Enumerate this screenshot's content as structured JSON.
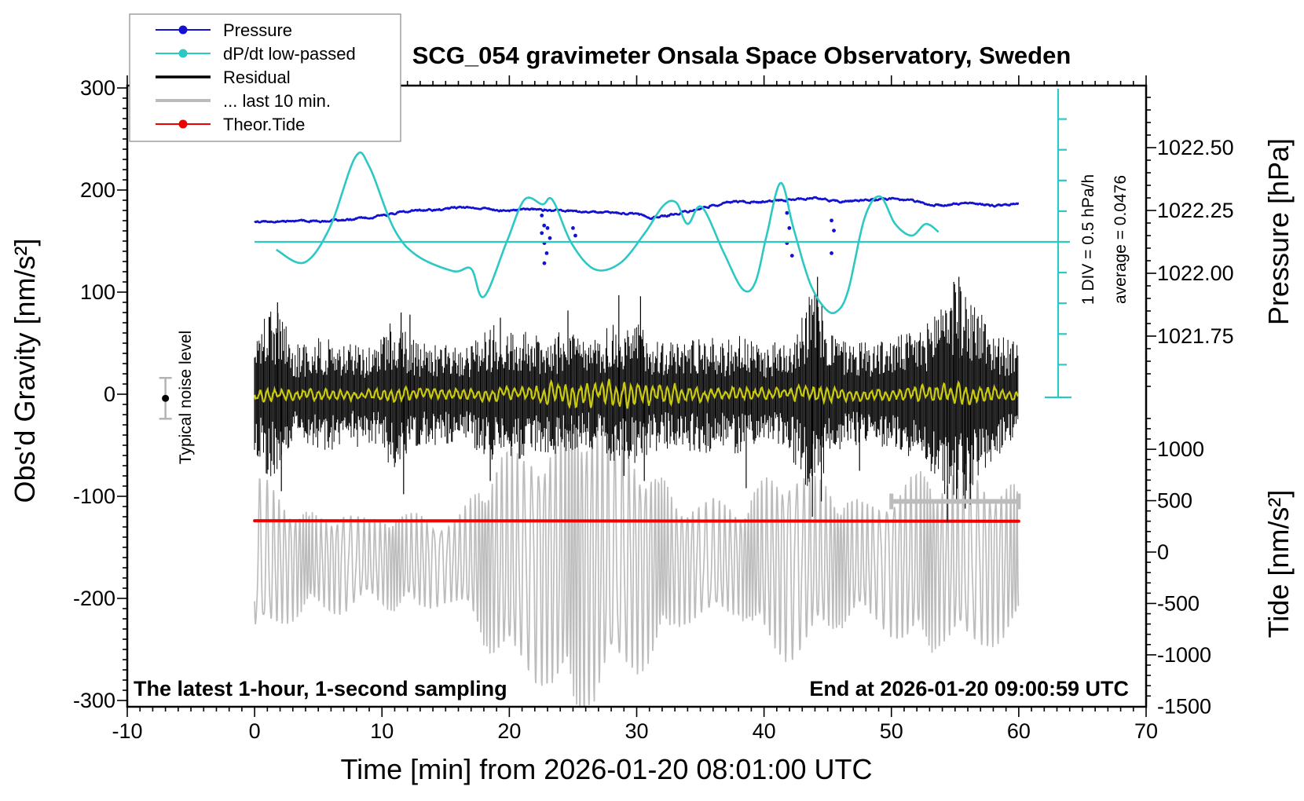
{
  "labels": {
    "title": "SCG_054 gravimeter Onsala Space Observatory, Sweden",
    "x_axis": "Time [min] from 2026-01-20 08:01:00 UTC",
    "y_left": "Obs'd Gravity [nm/s²]",
    "y_right_top": "Pressure [hPa]",
    "y_right_bottom": "Tide [nm/s²]",
    "note_left": "The latest 1-hour, 1-second sampling",
    "note_right": "End at 2026-01-20 09:00:59 UTC",
    "noise_marker": "Typical noise level",
    "div_annotation": "1 DIV = 0.5 hPa/h",
    "average_annotation": "average = 0.0476"
  },
  "colors": {
    "pressure": "#1212d0",
    "dpdt": "#2cc8c4",
    "residual": "#000000",
    "residual_lowpass": "#c9c90e",
    "last10": "#bcbcbc",
    "tide": "#ee0000"
  },
  "legend": {
    "items": [
      {
        "label": "Pressure",
        "color": "#1212d0",
        "sample": "line-dot",
        "weight": 2
      },
      {
        "label": "dP/dt low-passed",
        "color": "#2cc8c4",
        "sample": "line-dot",
        "weight": 2
      },
      {
        "label": "Residual",
        "color": "#000000",
        "sample": "line",
        "weight": 3.5
      },
      {
        "label": "... last 10 min.",
        "color": "#bcbcbc",
        "sample": "line",
        "weight": 4
      },
      {
        "label": "Theor.Tide",
        "color": "#ee0000",
        "sample": "line-dot",
        "weight": 2
      }
    ]
  },
  "chart_data": {
    "type": "line",
    "title": "SCG_054 gravimeter Onsala Space Observatory, Sweden",
    "xlabel": "Time [min] from 2026-01-20 08:01:00 UTC",
    "x_axis": {
      "range": [
        -10,
        70
      ],
      "major_tick": 10,
      "minor_tick": 1,
      "tick_labels": [
        "-10",
        "0",
        "10",
        "20",
        "30",
        "40",
        "50",
        "60",
        "70"
      ]
    },
    "left_axis": {
      "label": "Obs'd Gravity [nm/s²]",
      "range": [
        -300,
        300
      ],
      "major_tick": 100,
      "minor_tick": 10,
      "tick_labels": [
        "300",
        "200",
        "100",
        "0",
        "-100",
        "-200",
        "-300"
      ]
    },
    "right_axis_pressure": {
      "label": "Pressure [hPa]",
      "minor_tick": 0.05,
      "tick_values": [
        1022.5,
        1022.25,
        1022.0,
        1021.75
      ],
      "tick_labels": [
        "1022.50",
        "1022.25",
        "1022.00",
        "1021.75"
      ]
    },
    "right_axis_tide": {
      "label": "Tide [nm/s²]",
      "minor_tick": 100,
      "major_tick": 500,
      "tick_values": [
        1000,
        500,
        0,
        -500,
        -1000,
        -1500
      ],
      "tick_labels": [
        "1000",
        "500",
        "0",
        "-500",
        "-1000",
        "-1500"
      ]
    },
    "scalebar": {
      "div_label": "1 DIV = 0.5 hPa/h",
      "average_label": "average = 0.0476",
      "average_hPa_per_h": 0.0476,
      "div_hPa_per_h": 0.5
    },
    "noise_marker": {
      "label": "Typical noise level",
      "t_min": -7,
      "gravity_nms2": -4,
      "error_nms2": 20
    },
    "last10_interval_bar": {
      "t_start_min": 50,
      "t_end_min": 60,
      "gravity_nms2": -105
    },
    "series": [
      {
        "name": "Pressure",
        "unit": "hPa",
        "points": [
          [
            0,
            1022.205
          ],
          [
            2,
            1022.207
          ],
          [
            4,
            1022.21
          ],
          [
            5,
            1022.206
          ],
          [
            6,
            1022.208
          ],
          [
            8,
            1022.216
          ],
          [
            10,
            1022.23
          ],
          [
            12,
            1022.247
          ],
          [
            13,
            1022.252
          ],
          [
            14,
            1022.25
          ],
          [
            15,
            1022.258
          ],
          [
            16,
            1022.263
          ],
          [
            17,
            1022.262
          ],
          [
            18,
            1022.258
          ],
          [
            19,
            1022.252
          ],
          [
            20,
            1022.25
          ],
          [
            21,
            1022.253
          ],
          [
            22,
            1022.255
          ],
          [
            23,
            1022.251
          ],
          [
            24,
            1022.25
          ],
          [
            25,
            1022.247
          ],
          [
            26,
            1022.244
          ],
          [
            27,
            1022.242
          ],
          [
            28,
            1022.24
          ],
          [
            29,
            1022.238
          ],
          [
            30,
            1022.234
          ],
          [
            31,
            1022.222
          ],
          [
            32,
            1022.226
          ],
          [
            33,
            1022.235
          ],
          [
            34,
            1022.246
          ],
          [
            35,
            1022.258
          ],
          [
            36,
            1022.27
          ],
          [
            37,
            1022.28
          ],
          [
            38,
            1022.285
          ],
          [
            39,
            1022.284
          ],
          [
            40,
            1022.285
          ],
          [
            41,
            1022.288
          ],
          [
            42,
            1022.291
          ],
          [
            43,
            1022.295
          ],
          [
            44,
            1022.3
          ],
          [
            45,
            1022.293
          ],
          [
            46,
            1022.286
          ],
          [
            47,
            1022.288
          ],
          [
            48,
            1022.291
          ],
          [
            49,
            1022.294
          ],
          [
            50,
            1022.296
          ],
          [
            51,
            1022.292
          ],
          [
            52,
            1022.285
          ],
          [
            53,
            1022.272
          ],
          [
            54,
            1022.27
          ],
          [
            55,
            1022.274
          ],
          [
            56,
            1022.279
          ],
          [
            57,
            1022.275
          ],
          [
            58,
            1022.269
          ],
          [
            59,
            1022.272
          ],
          [
            60,
            1022.276
          ]
        ]
      },
      {
        "name": "dP/dt low-passed",
        "unit": "hPa/h",
        "average": 0.0476,
        "points": [
          [
            1.7,
            -0.08
          ],
          [
            3.9,
            -0.29
          ],
          [
            5.9,
            0.28
          ],
          [
            7.9,
            1.43
          ],
          [
            9.0,
            1.28
          ],
          [
            10.9,
            0.28
          ],
          [
            12.7,
            -0.17
          ],
          [
            15.6,
            -0.43
          ],
          [
            17.0,
            -0.39
          ],
          [
            18.0,
            -0.85
          ],
          [
            19.8,
            0.05
          ],
          [
            21.2,
            0.74
          ],
          [
            22.6,
            0.66
          ],
          [
            23.4,
            0.73
          ],
          [
            24.9,
            0.02
          ],
          [
            26.7,
            -0.4
          ],
          [
            28.7,
            -0.3
          ],
          [
            30.6,
            0.18
          ],
          [
            32.1,
            0.64
          ],
          [
            33.1,
            0.69
          ],
          [
            34.0,
            0.34
          ],
          [
            35.1,
            0.62
          ],
          [
            36.8,
            -0.11
          ],
          [
            38.3,
            -0.72
          ],
          [
            39.3,
            -0.62
          ],
          [
            40.2,
            0.15
          ],
          [
            41.3,
            1.01
          ],
          [
            42.3,
            0.28
          ],
          [
            43.6,
            -0.62
          ],
          [
            44.8,
            -1.04
          ],
          [
            45.7,
            -1.09
          ],
          [
            46.6,
            -0.75
          ],
          [
            47.9,
            0.44
          ],
          [
            49.1,
            0.79
          ],
          [
            50.3,
            0.34
          ],
          [
            51.6,
            0.15
          ],
          [
            52.7,
            0.34
          ],
          [
            53.7,
            0.21
          ]
        ]
      },
      {
        "name": "Residual",
        "unit": "nm/s²",
        "envelope_per_minute": [
          55,
          80,
          85,
          50,
          50,
          55,
          55,
          48,
          52,
          48,
          55,
          80,
          60,
          50,
          52,
          48,
          50,
          52,
          62,
          70,
          60,
          65,
          58,
          60,
          62,
          60,
          52,
          55,
          70,
          58,
          75,
          60,
          55,
          52,
          55,
          60,
          55,
          52,
          62,
          52,
          48,
          52,
          58,
          85,
          110,
          70,
          55,
          52,
          55,
          52,
          55,
          60,
          62,
          72,
          105,
          110,
          100,
          85,
          62,
          55,
          50
        ],
        "spikes": [
          [
            1.8,
            90
          ],
          [
            2.1,
            -95
          ],
          [
            11.5,
            80
          ],
          [
            11.7,
            -98
          ],
          [
            12.2,
            78
          ],
          [
            18.5,
            -85
          ],
          [
            19.3,
            75
          ],
          [
            24.6,
            82
          ],
          [
            28.6,
            97
          ],
          [
            29.0,
            -80
          ],
          [
            30.3,
            96
          ],
          [
            30.6,
            -85
          ],
          [
            38.6,
            -92
          ],
          [
            43.8,
            -120
          ],
          [
            44.2,
            115
          ],
          [
            44.5,
            -105
          ],
          [
            47.5,
            -75
          ],
          [
            54.4,
            -125
          ],
          [
            54.9,
            110
          ],
          [
            55.3,
            115
          ],
          [
            55.8,
            -112
          ],
          [
            56.2,
            -108
          ]
        ]
      },
      {
        "name": "Residual low-passed",
        "unit": "nm/s²",
        "envelope_per_minute": [
          8,
          9,
          8,
          7,
          7,
          7,
          8,
          7,
          7,
          7,
          8,
          10,
          8,
          7,
          7,
          7,
          7,
          8,
          9,
          9,
          8,
          9,
          10,
          12,
          13,
          14,
          15,
          16,
          17,
          16,
          15,
          14,
          13,
          12,
          10,
          9,
          8,
          8,
          9,
          8,
          7,
          8,
          8,
          10,
          12,
          10,
          8,
          8,
          8,
          8,
          8,
          9,
          9,
          10,
          12,
          12,
          11,
          10,
          9,
          8,
          8
        ]
      },
      {
        "name": "... last 10 min.",
        "unit": "nm/s² (tide axis)",
        "center": -90,
        "envelope_per_minute": [
          760,
          725,
          610,
          535,
          460,
          420,
          460,
          495,
          420,
          380,
          420,
          460,
          420,
          460,
          420,
          380,
          420,
          570,
          760,
          915,
          1030,
          990,
          1105,
          1145,
          1220,
          1410,
          1450,
          1295,
          1145,
          1070,
          1030,
          915,
          760,
          610,
          570,
          535,
          570,
          535,
          495,
          610,
          760,
          840,
          915,
          840,
          760,
          685,
          610,
          570,
          535,
          570,
          685,
          760,
          800,
          840,
          760,
          800,
          840,
          800,
          760,
          725,
          685
        ]
      },
      {
        "name": "Theor.Tide",
        "unit": "nm/s² (tide axis)",
        "points": [
          [
            0,
            305
          ],
          [
            60,
            300
          ]
        ]
      }
    ],
    "pressure_outlier_dots": [
      {
        "t": 22.55,
        "pressures": [
          1022.23,
          1022.19,
          1022.16
        ]
      },
      {
        "t": 22.75,
        "pressures": [
          1022.12,
          1022.08,
          1022.04
        ]
      },
      {
        "t": 23.0,
        "pressures": [
          1022.18,
          1022.14
        ]
      },
      {
        "t": 25.0,
        "pressures": [
          1022.18,
          1022.15
        ]
      },
      {
        "t": 41.8,
        "pressures": [
          1022.24,
          1022.18,
          1022.12
        ]
      },
      {
        "t": 42.2,
        "pressures": [
          1022.07
        ]
      },
      {
        "t": 45.3,
        "pressures": [
          1022.21,
          1022.17,
          1022.08
        ]
      }
    ]
  }
}
